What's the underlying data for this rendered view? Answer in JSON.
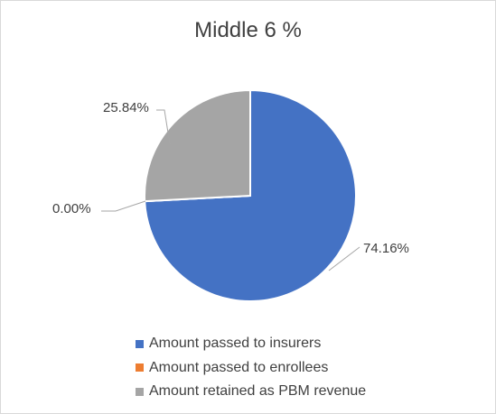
{
  "chart_data": {
    "type": "pie",
    "title": "Middle 6 %",
    "series": [
      {
        "name": "Amount passed to insurers",
        "value": 74.16,
        "label": "74.16%",
        "color": "#4472C4"
      },
      {
        "name": "Amount passed to enrollees",
        "value": 0.0,
        "label": "0.00%",
        "color": "#ED7D31"
      },
      {
        "name": "Amount retained as PBM revenue",
        "value": 25.84,
        "label": "25.84%",
        "color": "#A5A5A5"
      }
    ],
    "legend_position": "bottom",
    "start_angle_deg": 0
  }
}
